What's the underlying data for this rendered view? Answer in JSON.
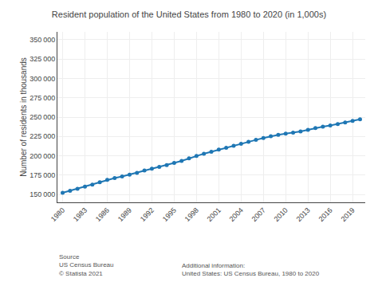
{
  "chart_data": {
    "type": "line",
    "title": "Resident population of the United States from 1980 to 2020 (in 1,000s)",
    "ylabel": "Number of residents in thousands",
    "x": [
      1980,
      1981,
      1982,
      1983,
      1984,
      1985,
      1986,
      1987,
      1988,
      1989,
      1990,
      1991,
      1992,
      1993,
      1994,
      1995,
      1996,
      1997,
      1998,
      1999,
      2000,
      2001,
      2002,
      2003,
      2004,
      2005,
      2006,
      2007,
      2008,
      2009,
      2010,
      2011,
      2012,
      2013,
      2014,
      2015,
      2016,
      2017,
      2018,
      2019,
      2020
    ],
    "values": [
      152271,
      154974,
      157553,
      160184,
      162966,
      165931,
      168987,
      171274,
      173366,
      175798,
      178098,
      181143,
      183476,
      185804,
      188128,
      190925,
      193526,
      196789,
      199849,
      202807,
      205338,
      207980,
      210421,
      212923,
      215653,
      218028,
      220590,
      222999,
      225450,
      227110,
      228705,
      230048,
      231542,
      233657,
      235825,
      237655,
      239279,
      241091,
      243180,
      245052,
      247159
    ],
    "xlim": [
      1979.3,
      2020.7
    ],
    "xticks": [
      1980,
      1983,
      1986,
      1989,
      1992,
      1995,
      1998,
      2001,
      2004,
      2007,
      2010,
      2013,
      2016,
      2019
    ],
    "ylim": [
      140000,
      360000
    ],
    "yticks": [
      {
        "value": 150000,
        "label": "150 000"
      },
      {
        "value": 175000,
        "label": "175 000"
      },
      {
        "value": 200000,
        "label": "200 000"
      },
      {
        "value": 225000,
        "label": "225 000"
      },
      {
        "value": 250000,
        "label": "250 000"
      },
      {
        "value": 275000,
        "label": "275 000"
      },
      {
        "value": 300000,
        "label": "300 000"
      },
      {
        "value": 325000,
        "label": "325 000"
      },
      {
        "value": 350000,
        "label": "350 000"
      }
    ],
    "grid": true,
    "marker": "circle",
    "line_style": "solid",
    "annotations": [
      "Source\nUS Census Bureau\n© Statista 2021",
      "Additional information:\nUnited States: US Census Bureau, 1980 to 2020"
    ]
  }
}
